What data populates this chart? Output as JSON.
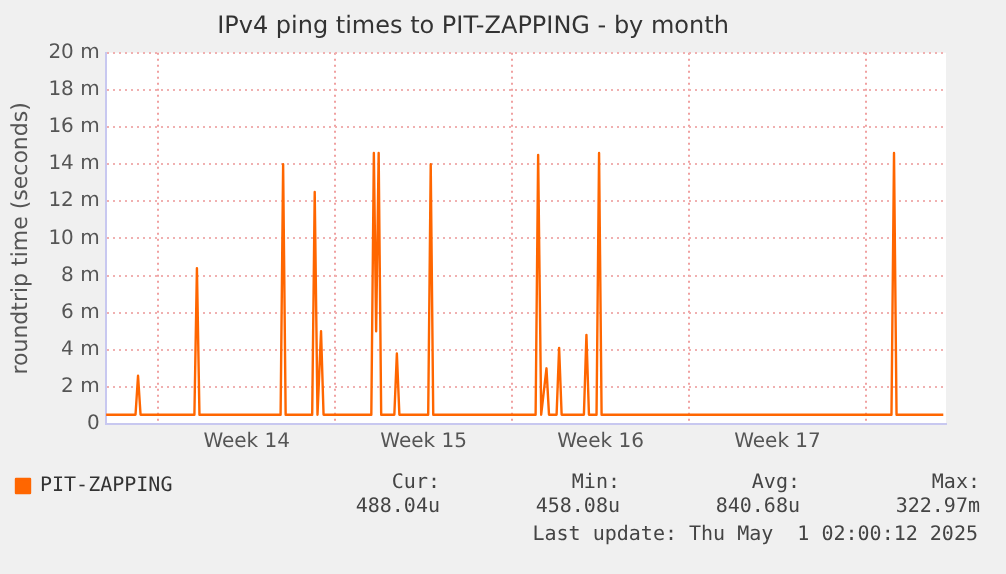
{
  "chart_data": {
    "type": "line",
    "title": "IPv4 ping times to PIT-ZAPPING - by month",
    "ylabel": "roundtrip time (seconds)",
    "x": [
      "2025-03-28T22:30",
      "2025-03-30T02:24",
      "2025-03-30T04:48",
      "2025-03-30T07:12",
      "2025-04-01T10:19",
      "2025-04-01T12:43",
      "2025-04-01T15:07",
      "2025-04-04T20:10",
      "2025-04-04T22:34",
      "2025-04-05T00:58",
      "2025-04-06T02:10",
      "2025-04-06T04:34",
      "2025-04-06T07:12",
      "2025-04-06T10:34",
      "2025-04-06T12:58",
      "2025-04-08T10:19",
      "2025-04-08T12:43",
      "2025-04-08T14:53",
      "2025-04-08T17:17",
      "2025-04-08T19:41",
      "2025-04-09T08:10",
      "2025-04-09T10:34",
      "2025-04-09T12:58",
      "2025-04-10T16:19",
      "2025-04-10T18:43",
      "2025-04-10T21:07",
      "2025-04-14T22:19",
      "2025-04-15T00:43",
      "2025-04-15T03:36",
      "2025-04-15T08:38",
      "2025-04-15T11:02",
      "2025-04-15T18:14",
      "2025-04-15T20:38",
      "2025-04-15T23:02",
      "2025-04-16T20:10",
      "2025-04-16T22:34",
      "2025-04-17T00:58",
      "2025-04-17T04:48",
      "2025-04-17T08:10",
      "2025-04-17T10:34",
      "2025-04-17T12:58",
      "2025-04-29T00:14",
      "2025-04-29T02:38",
      "2025-04-29T05:02",
      "2025-05-01T01:26"
    ],
    "series": [
      {
        "name": "PIT-ZAPPING",
        "color": "#ff6600",
        "values": [
          0.5,
          0.5,
          2.6,
          0.5,
          0.5,
          8.4,
          0.5,
          0.5,
          14,
          0.5,
          0.5,
          12.5,
          0.5,
          5,
          0.5,
          0.5,
          14.6,
          5,
          14.6,
          0.5,
          0.5,
          3.8,
          0.5,
          0.5,
          14,
          0.5,
          0.5,
          14.5,
          0.5,
          3,
          0.5,
          0.5,
          4.1,
          0.5,
          0.5,
          4.8,
          0.5,
          0.5,
          0.5,
          14.6,
          0.5,
          0.5,
          14.6,
          0.5,
          0.5
        ]
      }
    ],
    "xlim": [
      "2025-03-28T22:05",
      "2025-05-01T04:00"
    ],
    "xticks": [
      {
        "value": "2025-03-31",
        "label": null
      },
      {
        "value": "2025-04-03T12:00",
        "label": "Week 14"
      },
      {
        "value": "2025-04-07",
        "label": null
      },
      {
        "value": "2025-04-10T12:00",
        "label": "Week 15"
      },
      {
        "value": "2025-04-14",
        "label": null
      },
      {
        "value": "2025-04-17T12:00",
        "label": "Week 16"
      },
      {
        "value": "2025-04-21",
        "label": null
      },
      {
        "value": "2025-04-24T12:00",
        "label": "Week 17"
      },
      {
        "value": "2025-04-28",
        "label": null
      }
    ],
    "ylim": [
      0,
      20
    ],
    "yticks": [
      0,
      {
        "value": 2,
        "label": "2 m"
      },
      {
        "value": 4,
        "label": "4 m"
      },
      {
        "value": 6,
        "label": "6 m"
      },
      {
        "value": 8,
        "label": "8 m"
      },
      {
        "value": 10,
        "label": "10 m"
      },
      {
        "value": 12,
        "label": "12 m"
      },
      {
        "value": 14,
        "label": "14 m"
      },
      {
        "value": 16,
        "label": "16 m"
      },
      {
        "value": 18,
        "label": "18 m"
      },
      {
        "value": 20,
        "label": "20 m"
      }
    ],
    "grid": true,
    "legend": "bottom left",
    "marker": "none",
    "line_style": "solid",
    "annotations": [
      "Cur:",
      "Min:",
      "Avg:",
      "Max:",
      "488.04u",
      "458.08u",
      "840.68u",
      "322.97m",
      "Last update: Thu May  1 02:00:12 2025"
    ]
  }
}
